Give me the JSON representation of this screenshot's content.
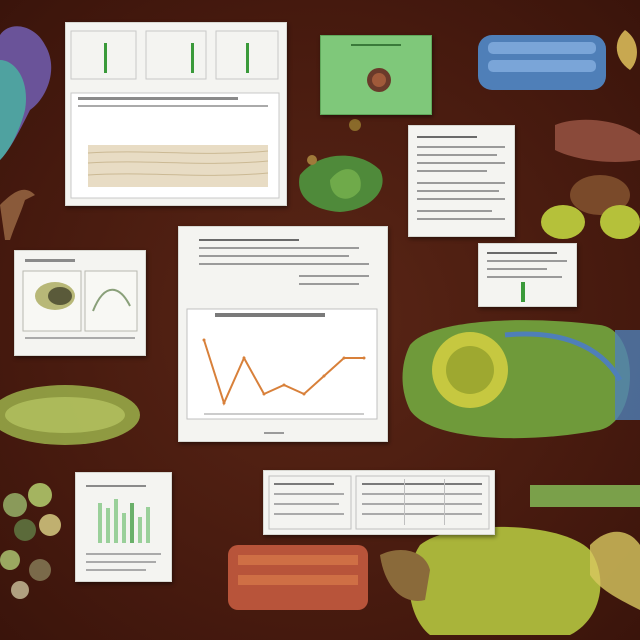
{
  "scene": {
    "background_color": "#4a1f12",
    "accent_colors": {
      "leaf_green": "#5f9b3a",
      "blue": "#4f7fb8",
      "yellow_green": "#b5c13a",
      "orange_line": "#d8803a",
      "purple": "#7a5aa8"
    }
  },
  "cards": [
    {
      "id": "card-top-left-charts",
      "content": "three-bar-panels-and-striped-plot"
    },
    {
      "id": "card-green-tile",
      "content": "green-square-with-dark-dot"
    },
    {
      "id": "card-text-top-right",
      "content": "text-lines"
    },
    {
      "id": "card-sketch-left",
      "content": "sketch-panels"
    },
    {
      "id": "card-line-chart-center",
      "content": "line-chart-with-text"
    },
    {
      "id": "card-small-right",
      "content": "text-with-green-bar"
    },
    {
      "id": "card-bar-bottom-left",
      "content": "bar-chart"
    },
    {
      "id": "card-table-bottom",
      "content": "table"
    }
  ],
  "chart_data": {
    "type": "line",
    "x": [
      1,
      2,
      3,
      4,
      5,
      6,
      7,
      8,
      9
    ],
    "series": [
      {
        "values": [
          8,
          1,
          6,
          2,
          3,
          2,
          4,
          6,
          6
        ]
      }
    ],
    "ylim": [
      0,
      10
    ]
  }
}
